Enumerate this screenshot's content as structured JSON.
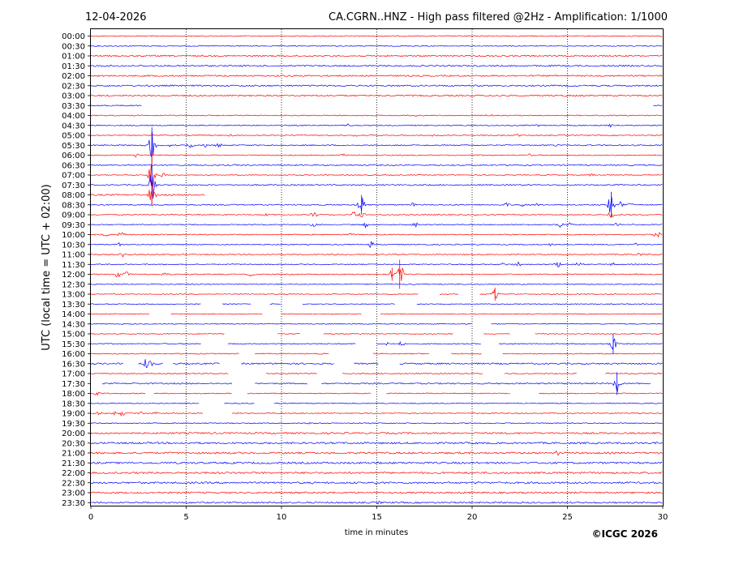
{
  "header": {
    "date": "12-04-2026",
    "title": "CA.CGRN..HNZ - High pass filtered @2Hz - Amplification: 1/1000"
  },
  "footer": {
    "credit": "©ICGC 2026"
  },
  "colors": {
    "odd_trace": "#ff0000",
    "even_trace": "#0000ff",
    "axis": "#000000",
    "grid": "#000000"
  },
  "chart_data": {
    "type": "line",
    "xlabel": "time in minutes",
    "ylabel": "UTC (local time = UTC + 02:00)",
    "xlim": [
      0,
      30
    ],
    "xticks": [
      "0",
      "5",
      "10",
      "15",
      "20",
      "25",
      "30"
    ],
    "grid": "vertical dotted at 5, 10, 15, 20, 25",
    "rows": [
      "00:00",
      "00:30",
      "01:00",
      "01:30",
      "02:00",
      "02:30",
      "03:00",
      "03:30",
      "04:00",
      "04:30",
      "05:00",
      "05:30",
      "06:00",
      "06:30",
      "07:00",
      "07:30",
      "08:00",
      "08:30",
      "09:00",
      "09:30",
      "10:00",
      "10:30",
      "11:00",
      "11:30",
      "12:00",
      "12:30",
      "13:00",
      "13:30",
      "14:00",
      "14:30",
      "15:00",
      "15:30",
      "16:00",
      "16:30",
      "17:00",
      "17:30",
      "18:00",
      "18:30",
      "19:00",
      "19:30",
      "20:00",
      "20:30",
      "21:00",
      "21:30",
      "22:00",
      "22:30",
      "23:00",
      "23:30"
    ],
    "traces": [
      {
        "time": "00:00",
        "noise": 0.6,
        "segments": [
          [
            0,
            30
          ]
        ],
        "events": []
      },
      {
        "time": "00:30",
        "noise": 0.6,
        "segments": [
          [
            0,
            30
          ]
        ],
        "events": []
      },
      {
        "time": "01:00",
        "noise": 0.9,
        "segments": [
          [
            0,
            30
          ]
        ],
        "events": [
          [
            12,
            1.5
          ],
          [
            25,
            1.2
          ]
        ]
      },
      {
        "time": "01:30",
        "noise": 0.9,
        "segments": [
          [
            0,
            30
          ]
        ],
        "events": []
      },
      {
        "time": "02:00",
        "noise": 0.9,
        "segments": [
          [
            0,
            30
          ]
        ],
        "events": []
      },
      {
        "time": "02:30",
        "noise": 0.9,
        "segments": [
          [
            0,
            30
          ]
        ],
        "events": []
      },
      {
        "time": "03:00",
        "noise": 0.9,
        "segments": [
          [
            0,
            30
          ]
        ],
        "events": [
          [
            21.5,
            1.5
          ],
          [
            25,
            1.2
          ]
        ]
      },
      {
        "time": "03:30",
        "noise": 0.7,
        "segments": [
          [
            0,
            2.7
          ],
          [
            29.5,
            30
          ]
        ],
        "events": [
          [
            29.4,
            1.5
          ]
        ]
      },
      {
        "time": "04:00",
        "noise": 0.6,
        "segments": [
          [
            0,
            30
          ]
        ],
        "events": [
          [
            16.9,
            2
          ],
          [
            20.9,
            1.5
          ]
        ]
      },
      {
        "time": "04:30",
        "noise": 0.6,
        "segments": [
          [
            0,
            30
          ]
        ],
        "events": [
          [
            13.5,
            2
          ],
          [
            27.2,
            2.5
          ],
          [
            23.5,
            1.5
          ]
        ]
      },
      {
        "time": "05:00",
        "noise": 0.6,
        "segments": [
          [
            0,
            30
          ]
        ],
        "events": [
          [
            7.4,
            2
          ],
          [
            13.9,
            1.5
          ],
          [
            18,
            1.5
          ],
          [
            22.4,
            1.5
          ]
        ]
      },
      {
        "time": "05:30",
        "noise": 0.7,
        "segments": [
          [
            0,
            30
          ]
        ],
        "events": [
          [
            3.2,
            22
          ],
          [
            4.1,
            4
          ],
          [
            5.2,
            5
          ],
          [
            6,
            3
          ],
          [
            6.7,
            3
          ],
          [
            24.5,
            1.5
          ]
        ]
      },
      {
        "time": "06:00",
        "noise": 0.6,
        "segments": [
          [
            0,
            30
          ]
        ],
        "events": [
          [
            2.4,
            3
          ],
          [
            13.2,
            2
          ],
          [
            23,
            1.5
          ]
        ]
      },
      {
        "time": "06:30",
        "noise": 0.8,
        "segments": [
          [
            0,
            30
          ]
        ],
        "events": []
      },
      {
        "time": "07:00",
        "noise": 0.5,
        "segments": [
          [
            0,
            30
          ]
        ],
        "events": [
          [
            3.2,
            28
          ],
          [
            3.8,
            3
          ],
          [
            26.3,
            2
          ]
        ]
      },
      {
        "time": "07:30",
        "noise": 0.8,
        "segments": [
          [
            0,
            30
          ]
        ],
        "events": [
          [
            3.2,
            24
          ]
        ]
      },
      {
        "time": "08:00",
        "noise": 0.9,
        "segments": [
          [
            0,
            6
          ]
        ],
        "events": [
          [
            3.2,
            14
          ]
        ]
      },
      {
        "time": "08:30",
        "noise": 0.7,
        "segments": [
          [
            0,
            30
          ]
        ],
        "events": [
          [
            14.2,
            12
          ],
          [
            16.9,
            3
          ],
          [
            21.8,
            2.5
          ],
          [
            22.6,
            2
          ],
          [
            23.4,
            2
          ],
          [
            27.3,
            16
          ],
          [
            27.8,
            4
          ],
          [
            28.3,
            3
          ]
        ]
      },
      {
        "time": "09:00",
        "noise": 0.6,
        "segments": [
          [
            0,
            30
          ]
        ],
        "events": [
          [
            11.7,
            4
          ],
          [
            13.8,
            5
          ],
          [
            14.2,
            4
          ],
          [
            27.3,
            5
          ],
          [
            9.2,
            2
          ]
        ]
      },
      {
        "time": "09:30",
        "noise": 0.6,
        "segments": [
          [
            0,
            30
          ]
        ],
        "events": [
          [
            11.7,
            3
          ],
          [
            14.4,
            4
          ],
          [
            17,
            3
          ],
          [
            24.6,
            4
          ],
          [
            25.1,
            3
          ],
          [
            27.6,
            2.5
          ]
        ]
      },
      {
        "time": "10:00",
        "noise": 0.6,
        "segments": [
          [
            0,
            30
          ]
        ],
        "events": [
          [
            0.8,
            3
          ],
          [
            1.6,
            3
          ],
          [
            13.7,
            2.5
          ],
          [
            29.7,
            5
          ]
        ]
      },
      {
        "time": "10:30",
        "noise": 0.6,
        "segments": [
          [
            0,
            30
          ]
        ],
        "events": [
          [
            1.5,
            2.5
          ],
          [
            14.7,
            4
          ],
          [
            24.1,
            2
          ],
          [
            28.6,
            2
          ]
        ]
      },
      {
        "time": "11:00",
        "noise": 0.6,
        "segments": [
          [
            0,
            30
          ]
        ],
        "events": [
          [
            1.7,
            3
          ],
          [
            12.7,
            2
          ],
          [
            28.7,
            3
          ]
        ]
      },
      {
        "time": "11:30",
        "noise": 0.6,
        "segments": [
          [
            0,
            30
          ]
        ],
        "events": [
          [
            21.6,
            3
          ],
          [
            22.4,
            2.5
          ],
          [
            24.5,
            4
          ],
          [
            25.6,
            4
          ],
          [
            27.4,
            2
          ]
        ]
      },
      {
        "time": "12:00",
        "noise": 0.6,
        "segments": [
          [
            0,
            30
          ]
        ],
        "events": [
          [
            1.4,
            4
          ],
          [
            1.9,
            4
          ],
          [
            3.9,
            2.5
          ],
          [
            15.8,
            8
          ],
          [
            16.2,
            18
          ],
          [
            8.4,
            2
          ]
        ]
      },
      {
        "time": "12:30",
        "noise": 0.6,
        "segments": [
          [
            0,
            30
          ]
        ],
        "events": []
      },
      {
        "time": "13:00",
        "noise": 0.5,
        "segments": [
          [
            0,
            17.2
          ],
          [
            18.3,
            19.3
          ],
          [
            20.4,
            30
          ]
        ],
        "events": [
          [
            21.2,
            8
          ]
        ]
      },
      {
        "time": "13:30",
        "noise": 0.5,
        "segments": [
          [
            0,
            5.8
          ],
          [
            6.9,
            8.4
          ],
          [
            9.4,
            10
          ],
          [
            11.1,
            16
          ],
          [
            17.1,
            30
          ]
        ],
        "events": []
      },
      {
        "time": "14:00",
        "noise": 0.5,
        "segments": [
          [
            0,
            3.1
          ],
          [
            4.2,
            9
          ],
          [
            10,
            14.2
          ],
          [
            15.2,
            30
          ]
        ],
        "events": []
      },
      {
        "time": "14:30",
        "noise": 0.5,
        "segments": [
          [
            0,
            20
          ],
          [
            21,
            30
          ]
        ],
        "events": []
      },
      {
        "time": "15:00",
        "noise": 0.5,
        "segments": [
          [
            0,
            7
          ],
          [
            9.8,
            11
          ],
          [
            12.2,
            19
          ],
          [
            20.6,
            22
          ],
          [
            23.3,
            30
          ]
        ],
        "events": []
      },
      {
        "time": "15:30",
        "noise": 0.6,
        "segments": [
          [
            0,
            5.8
          ],
          [
            7.2,
            13.9
          ],
          [
            15,
            20.5
          ],
          [
            21.4,
            30
          ]
        ],
        "events": [
          [
            15.5,
            3
          ],
          [
            16.3,
            4
          ],
          [
            27.4,
            12
          ]
        ]
      },
      {
        "time": "16:00",
        "noise": 0.6,
        "segments": [
          [
            0,
            7.8
          ],
          [
            8.6,
            12.5
          ],
          [
            14.8,
            17.8
          ],
          [
            18.9,
            20.5
          ],
          [
            21.6,
            30
          ]
        ],
        "events": []
      },
      {
        "time": "16:30",
        "noise": 0.9,
        "segments": [
          [
            0,
            1.7
          ],
          [
            2.5,
            3.8
          ],
          [
            4.3,
            6.8
          ],
          [
            7.9,
            12.8
          ],
          [
            13.8,
            15.1
          ],
          [
            16.2,
            30
          ]
        ],
        "events": [
          [
            2.9,
            6
          ],
          [
            3.1,
            5
          ]
        ]
      },
      {
        "time": "17:00",
        "noise": 0.6,
        "segments": [
          [
            0,
            7.2
          ],
          [
            9.2,
            11.9
          ],
          [
            13.2,
            20.6
          ],
          [
            21.7,
            25.5
          ],
          [
            27,
            30
          ]
        ],
        "events": []
      },
      {
        "time": "17:30",
        "noise": 0.8,
        "segments": [
          [
            0.6,
            7.4
          ],
          [
            8.6,
            11.4
          ],
          [
            12.1,
            29.4
          ]
        ],
        "events": [
          [
            27.6,
            14
          ],
          [
            28.4,
            2
          ]
        ]
      },
      {
        "time": "18:00",
        "noise": 0.6,
        "segments": [
          [
            0,
            2.9
          ],
          [
            3.3,
            7.4
          ],
          [
            8.2,
            14.7
          ],
          [
            15.5,
            22
          ],
          [
            23.5,
            30
          ]
        ],
        "events": [
          [
            0.3,
            3
          ]
        ]
      },
      {
        "time": "18:30",
        "noise": 0.5,
        "segments": [
          [
            0,
            5.7
          ],
          [
            7,
            8.6
          ],
          [
            9.6,
            30
          ]
        ],
        "events": []
      },
      {
        "time": "19:00",
        "noise": 0.6,
        "segments": [
          [
            0,
            5.9
          ],
          [
            7.4,
            30
          ]
        ],
        "events": [
          [
            0.4,
            3
          ],
          [
            1.2,
            3
          ],
          [
            1.6,
            3.5
          ],
          [
            2.6,
            2.5
          ],
          [
            3.4,
            2.5
          ]
        ]
      },
      {
        "time": "19:30",
        "noise": 0.6,
        "segments": [
          [
            0,
            30
          ]
        ],
        "events": [
          [
            11.4,
            2
          ]
        ]
      },
      {
        "time": "20:00",
        "noise": 1.0,
        "segments": [
          [
            0,
            30
          ]
        ],
        "events": []
      },
      {
        "time": "20:30",
        "noise": 1.1,
        "segments": [
          [
            0,
            30
          ]
        ],
        "events": []
      },
      {
        "time": "21:00",
        "noise": 1.1,
        "segments": [
          [
            0,
            30
          ]
        ],
        "events": [
          [
            24.5,
            2.5
          ]
        ]
      },
      {
        "time": "21:30",
        "noise": 1.1,
        "segments": [
          [
            0,
            30
          ]
        ],
        "events": [
          [
            15.1,
            1.5
          ]
        ]
      },
      {
        "time": "22:00",
        "noise": 1.1,
        "segments": [
          [
            0,
            30
          ]
        ],
        "events": []
      },
      {
        "time": "22:30",
        "noise": 1.1,
        "segments": [
          [
            0,
            30
          ]
        ],
        "events": [
          [
            15,
            1.2
          ],
          [
            20.3,
            1.2
          ]
        ]
      },
      {
        "time": "23:00",
        "noise": 1.0,
        "segments": [
          [
            0,
            30
          ]
        ],
        "events": []
      },
      {
        "time": "23:30",
        "noise": 0.9,
        "segments": [
          [
            0,
            30
          ]
        ],
        "events": [
          [
            15.1,
            1.5
          ]
        ]
      }
    ]
  }
}
